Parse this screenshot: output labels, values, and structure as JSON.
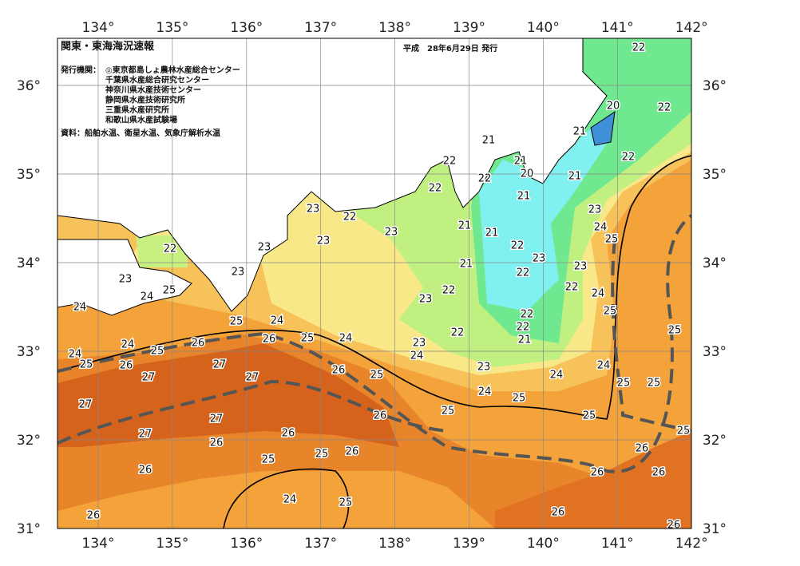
{
  "header": {
    "title": "関東・東海海況速報",
    "date": "平成　28年6月29日 発行",
    "issuer_label": "発行機関：",
    "issuers": [
      "◎東京都島しょ農林水産総合センター",
      "千葉県水産総合研究センター",
      "神奈川県水産技術センター",
      "静岡県水産技術研究所",
      "三重県水産研究所",
      "和歌山県水産試験場"
    ],
    "source": "資料：船舶水温、衛星水温、気象庁解析水温"
  },
  "axes": {
    "lon_labels": [
      "134°",
      "135°",
      "136°",
      "137°",
      "138°",
      "139°",
      "140°",
      "141°",
      "142°"
    ],
    "lat_labels": [
      "36°",
      "35°",
      "34°",
      "33°",
      "32°",
      "31°"
    ]
  },
  "contour_labels": [
    22,
    22,
    20,
    21,
    21,
    22,
    22,
    21,
    20,
    22,
    21,
    22,
    21,
    23,
    22,
    23,
    21,
    23,
    24,
    21,
    23,
    25,
    23,
    22,
    22,
    23,
    21,
    22,
    23,
    23,
    23,
    22,
    22,
    25,
    24,
    23,
    24,
    24,
    25,
    22,
    25,
    24,
    22,
    25,
    22,
    24,
    25,
    21,
    26,
    26,
    24,
    23,
    25,
    24,
    24,
    25,
    26,
    27,
    24,
    26,
    25,
    24,
    27,
    27,
    23,
    25,
    25,
    24,
    25,
    27,
    25,
    26,
    25,
    27,
    27,
    26,
    25,
    26,
    26,
    26,
    25,
    25,
    26,
    26,
    26,
    24,
    25,
    26,
    26,
    26
  ]
}
